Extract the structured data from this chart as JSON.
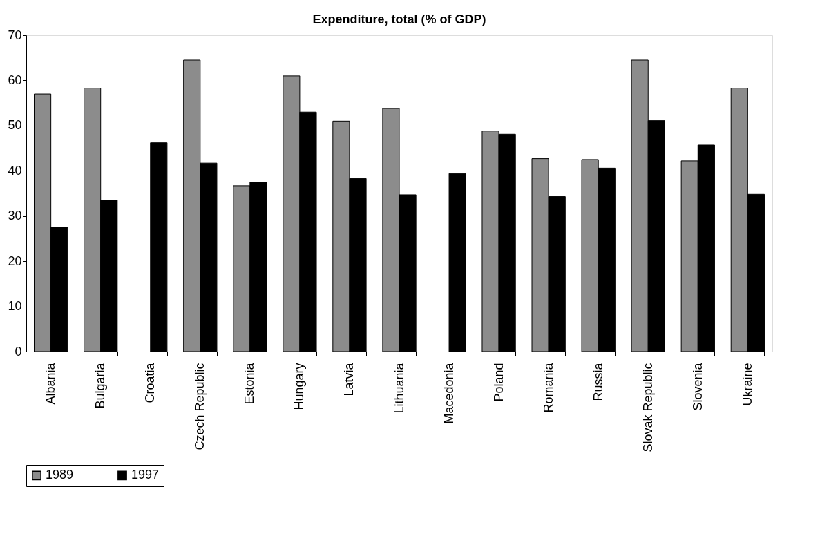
{
  "chart_data": {
    "type": "bar",
    "title": "Expenditure, total (% of GDP)",
    "categories": [
      "Albania",
      "Bulgaria",
      "Croatia",
      "Czech Republic",
      "Estonia",
      "Hungary",
      "Latvia",
      "Lithuania",
      "Macedonia",
      "Poland",
      "Romania",
      "Russia",
      "Slovak Republic",
      "Slovenia",
      "Ukraine"
    ],
    "series": [
      {
        "name": "1989",
        "color": "#8c8c8c",
        "values": [
          57,
          58.3,
          null,
          64.5,
          36.7,
          61,
          51,
          53.8,
          null,
          48.8,
          42.7,
          42.5,
          64.5,
          42.2,
          58.3
        ]
      },
      {
        "name": "1997",
        "color": "#000000",
        "values": [
          27.5,
          33.5,
          46.2,
          41.7,
          37.5,
          53,
          38.3,
          34.7,
          39.4,
          48.1,
          34.3,
          40.6,
          51.1,
          45.7,
          34.8
        ]
      }
    ],
    "ylim": [
      0,
      70
    ],
    "yticks": [
      0,
      10,
      20,
      30,
      40,
      50,
      60,
      70
    ],
    "grid": false,
    "legend": "bottom"
  }
}
